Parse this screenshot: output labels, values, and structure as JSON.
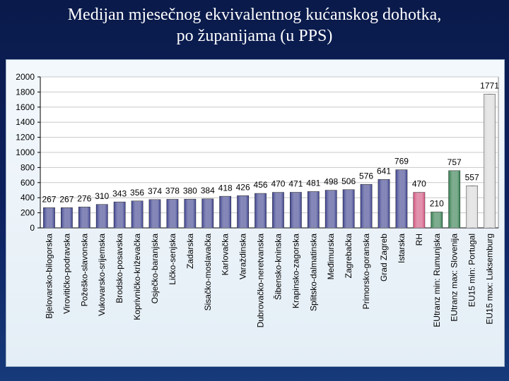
{
  "title": {
    "line1": "Medijan mjesečnog ekvivalentnog kućanskog dohotka,",
    "line2": "po županijama (u PPS)"
  },
  "chart_data": {
    "type": "bar",
    "title": "Medijan mjesečnog ekvivalentnog kućanskog dohotka, po županijama (u PPS)",
    "xlabel": "",
    "ylabel": "",
    "ylim": [
      0,
      2000
    ],
    "yticks": [
      0,
      200,
      400,
      600,
      800,
      1000,
      1200,
      1400,
      1600,
      1800,
      2000
    ],
    "grid": true,
    "categories": [
      "Bjelovarsko-bilogorska",
      "Virovitičko-podravska",
      "Požeško-slavonska",
      "Vukovarsko-srijemska",
      "Brodsko-posavska",
      "Koprivničko-križevačka",
      "Osječko-baranjska",
      "Ličko-senjska",
      "Zadarska",
      "Sisačko-moslavačka",
      "Karlovačka",
      "Varaždinska",
      "Dubrovačko-neretvanska",
      "Šibensko-kninska",
      "Krapinsko-zagorska",
      "Splitsko-dalmatinska",
      "Međimurska",
      "Zagrebačka",
      "Primorsko-goranska",
      "Grad Zagreb",
      "Istarska",
      "RH",
      "EUtranz min: Rumunjska",
      "EUtranz max: Slovenija",
      "EU15 min: Portugal",
      "EU15 max: Luksemburg"
    ],
    "values": [
      267,
      267,
      276,
      310,
      343,
      356,
      374,
      378,
      380,
      384,
      418,
      426,
      456,
      470,
      471,
      481,
      498,
      506,
      576,
      641,
      769,
      470,
      210,
      757,
      557,
      1771
    ],
    "bar_groups": [
      "county",
      "county",
      "county",
      "county",
      "county",
      "county",
      "county",
      "county",
      "county",
      "county",
      "county",
      "county",
      "county",
      "county",
      "county",
      "county",
      "county",
      "county",
      "county",
      "county",
      "county",
      "national",
      "eu",
      "eu",
      "eu15",
      "eu15"
    ],
    "colors": {
      "county": "#3a3f8c",
      "national": "#d0507a",
      "eu": "#2f7a4a",
      "eu15": "#d8d8d8"
    }
  }
}
